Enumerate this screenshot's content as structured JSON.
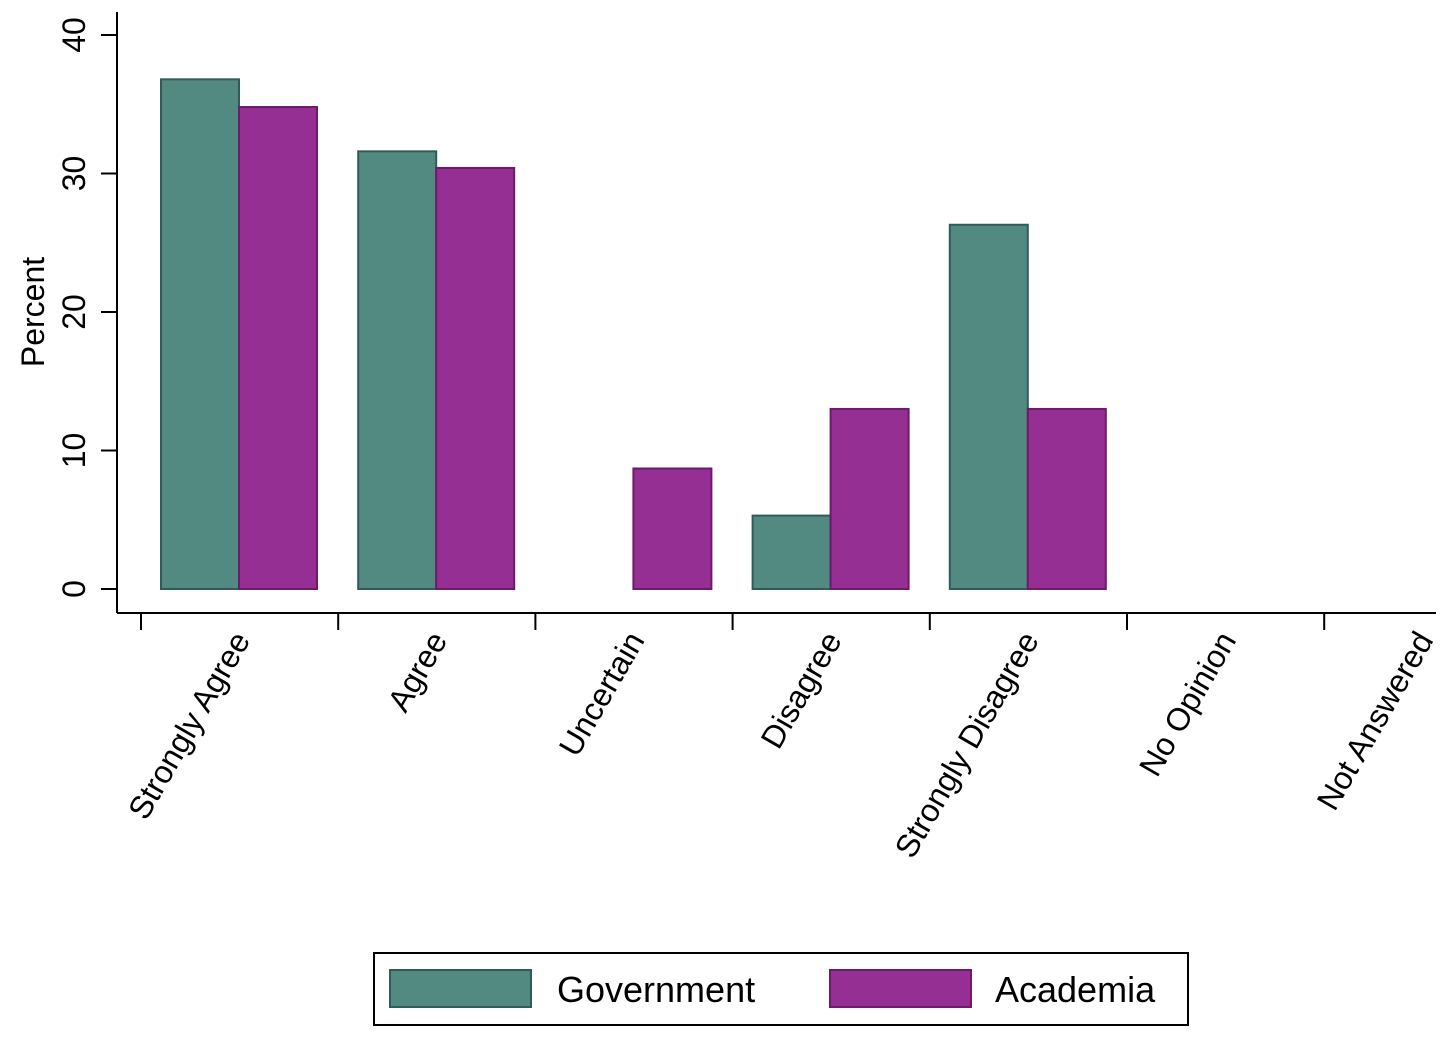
{
  "chart_data": {
    "type": "bar",
    "title": "",
    "xlabel": "",
    "ylabel": "Percent",
    "ylim": [
      0,
      40
    ],
    "yticks": [
      0,
      10,
      20,
      30,
      40
    ],
    "grid": false,
    "legend_position": "bottom",
    "categories": [
      "Strongly Agree",
      "Agree",
      "Uncertain",
      "Disagree",
      "Strongly Disagree",
      "No Opinion",
      "Not Answered"
    ],
    "series": [
      {
        "name": "Government",
        "color": "#528a82",
        "values": [
          36.8,
          31.6,
          0,
          5.3,
          26.3,
          0,
          0
        ]
      },
      {
        "name": "Academia",
        "color": "#952f94",
        "values": [
          34.8,
          30.4,
          8.7,
          13.0,
          13.0,
          0,
          0
        ]
      }
    ]
  }
}
